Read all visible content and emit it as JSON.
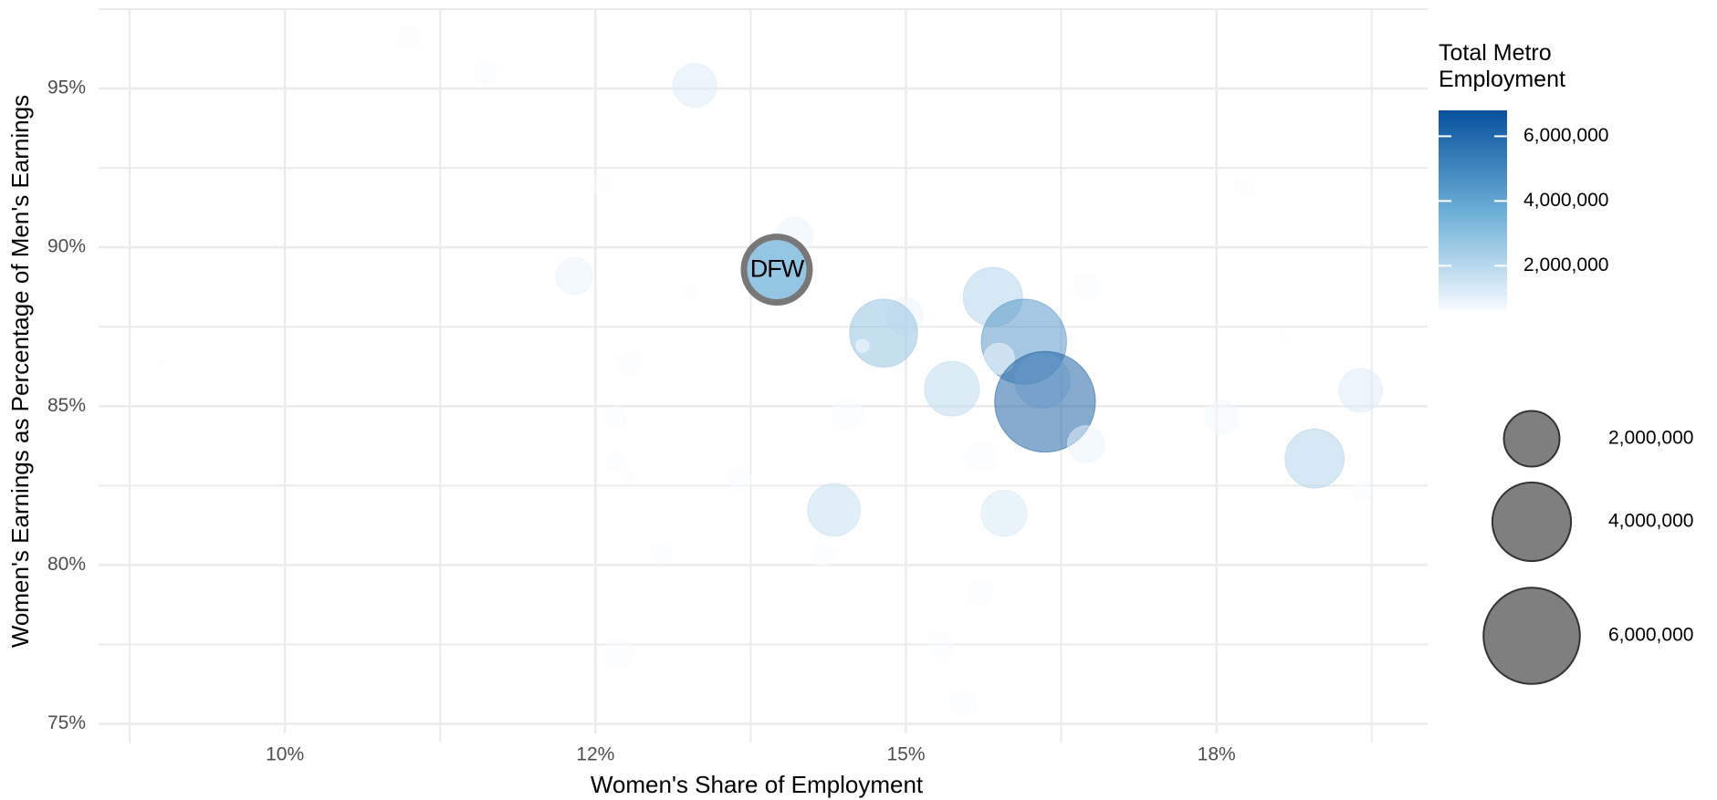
{
  "chart_data": {
    "type": "bubble",
    "xlabel": "Women's Share of Employment",
    "ylabel": "Women's Earnings as Percentage of Men's Earnings",
    "xlim": [
      8.5,
      19.2
    ],
    "ylim": [
      74.7,
      97.5
    ],
    "xticks": [
      {
        "value": 10,
        "label": "10%"
      },
      {
        "value": 12.5,
        "label": "12%"
      },
      {
        "value": 15,
        "label": "15%"
      },
      {
        "value": 17.5,
        "label": "18%"
      }
    ],
    "xminor": [
      8.75,
      11.25,
      13.75,
      16.25,
      18.75
    ],
    "yticks": [
      {
        "value": 75,
        "label": "75%"
      },
      {
        "value": 80,
        "label": "80%"
      },
      {
        "value": 85,
        "label": "85%"
      },
      {
        "value": 90,
        "label": "90%"
      },
      {
        "value": 95,
        "label": "95%"
      }
    ],
    "yminor": [
      77.5,
      82.5,
      87.5,
      92.5,
      97.5
    ],
    "grid": true,
    "x": [
      11.0,
      11.62,
      13.3,
      12.54,
      17.72,
      14.1,
      12.33,
      13.27,
      15.7,
      16.45,
      14.99,
      14.82,
      15.95,
      15.75,
      14.65,
      12.77,
      9.01,
      18.05,
      16.1,
      15.37,
      16.12,
      18.66,
      14.53,
      12.66,
      17.54,
      16.45,
      15.6,
      12.67,
      18.29,
      18.67,
      12.79,
      13.66,
      14.42,
      15.79,
      13.03,
      14.33,
      15.6,
      12.69,
      15.28,
      15.46
    ],
    "y": [
      96.6,
      95.5,
      95.1,
      92.0,
      91.9,
      90.36,
      89.1,
      88.6,
      88.44,
      88.78,
      87.85,
      87.3,
      87.03,
      86.5,
      86.9,
      86.34,
      86.44,
      87.2,
      85.8,
      85.55,
      85.14,
      85.5,
      84.76,
      84.66,
      84.66,
      83.8,
      83.42,
      83.28,
      83.35,
      82.32,
      82.77,
      82.73,
      81.74,
      81.63,
      80.36,
      80.29,
      79.12,
      77.23,
      77.5,
      75.72
    ],
    "sizes": [
      310000,
      310000,
      1240000,
      200000,
      250000,
      900000,
      900000,
      80000,
      2260000,
      450000,
      900000,
      2980000,
      4700000,
      610000,
      110000,
      375000,
      28000,
      12000,
      1940000,
      1940000,
      6560000,
      1240000,
      610000,
      310000,
      700000,
      900000,
      610000,
      250000,
      2260000,
      250000,
      50000,
      375000,
      1790000,
      1370000,
      250000,
      310000,
      375000,
      610000,
      450000,
      450000
    ],
    "highlight": {
      "label": "DFW",
      "x": 13.96,
      "y": 89.3,
      "size": 2790000,
      "stroke": "#777777"
    },
    "color_title": "Total Metro Employment",
    "color_range": [
      600000,
      6800000
    ],
    "colors": [
      "#f7fbff",
      "#6baed6",
      "#08519c"
    ],
    "color_ticks": [
      {
        "value": 2000000,
        "label": "2,000,000"
      },
      {
        "value": 4000000,
        "label": "4,000,000"
      },
      {
        "value": 6000000,
        "label": "6,000,000"
      }
    ],
    "size_legend": [
      {
        "value": 2000000,
        "label": "2,000,000"
      },
      {
        "value": 4000000,
        "label": "4,000,000"
      },
      {
        "value": 6000000,
        "label": "6,000,000"
      }
    ]
  }
}
